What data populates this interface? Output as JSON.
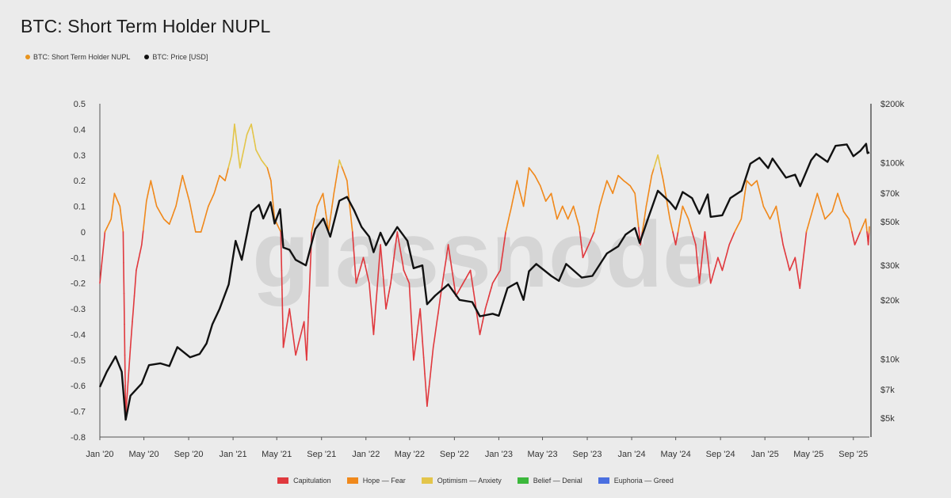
{
  "title": "BTC: Short Term Holder NUPL",
  "legend_top": [
    {
      "label": "BTC: Short Term Holder NUPL",
      "color": "#e8941e"
    },
    {
      "label": "BTC: Price [USD]",
      "color": "#111111"
    }
  ],
  "legend_bottom": [
    {
      "label": "Capitulation",
      "color": "#e0393e"
    },
    {
      "label": "Hope — Fear",
      "color": "#f0891c"
    },
    {
      "label": "Optimism — Anxiety",
      "color": "#e3c54a"
    },
    {
      "label": "Belief — Denial",
      "color": "#3cb83c"
    },
    {
      "label": "Euphoria — Greed",
      "color": "#4a6fe0"
    }
  ],
  "watermark": "glassnode",
  "chart_data": {
    "type": "line",
    "title": "BTC: Short Term Holder NUPL",
    "x_ticks": [
      "Jan '20",
      "May '20",
      "Sep '20",
      "Jan '21",
      "May '21",
      "Sep '21",
      "Jan '22",
      "May '22",
      "Sep '22",
      "Jan '23",
      "May '23",
      "Sep '23",
      "Jan '24",
      "May '24",
      "Sep '24",
      "Jan '25",
      "May '25",
      "Sep '25"
    ],
    "x_tick_dates": [
      "2020-01-01",
      "2020-05-01",
      "2020-09-01",
      "2021-01-01",
      "2021-05-01",
      "2021-09-01",
      "2022-01-01",
      "2022-05-01",
      "2022-09-01",
      "2023-01-01",
      "2023-05-01",
      "2023-09-01",
      "2024-01-01",
      "2024-05-01",
      "2024-09-01",
      "2025-01-01",
      "2025-05-01",
      "2025-09-01"
    ],
    "x_range": [
      "2020-01-01",
      "2025-10-15"
    ],
    "y_left": {
      "ticks": [
        "0.5",
        "0.4",
        "0.3",
        "0.2",
        "0.1",
        "0",
        "-0.1",
        "-0.2",
        "-0.3",
        "-0.4",
        "-0.5",
        "-0.6",
        "-0.7",
        "-0.8"
      ],
      "values": [
        0.5,
        0.4,
        0.3,
        0.2,
        0.1,
        0,
        -0.1,
        -0.2,
        -0.3,
        -0.4,
        -0.5,
        -0.6,
        -0.7,
        -0.8
      ],
      "range": [
        -0.8,
        0.5
      ]
    },
    "y_right": {
      "scale": "log",
      "ticks": [
        "$200k",
        "$100k",
        "$70k",
        "$50k",
        "$30k",
        "$20k",
        "$10k",
        "$7k",
        "$5k"
      ],
      "values": [
        200000,
        100000,
        70000,
        50000,
        30000,
        20000,
        10000,
        7000,
        5000
      ],
      "range": [
        4000,
        200000
      ]
    },
    "zones": [
      {
        "name": "Capitulation",
        "below": 0,
        "color": "#e0393e"
      },
      {
        "name": "Hope — Fear",
        "from": 0,
        "to": 0.25,
        "color": "#f0891c"
      },
      {
        "name": "Optimism — Anxiety",
        "from": 0.25,
        "to": 0.5,
        "color": "#e3c54a"
      }
    ],
    "series": [
      {
        "name": "BTC: Short Term Holder NUPL",
        "axis": "left",
        "points": [
          [
            "2020-01-01",
            -0.2
          ],
          [
            "2020-01-15",
            0.0
          ],
          [
            "2020-02-01",
            0.05
          ],
          [
            "2020-02-10",
            0.15
          ],
          [
            "2020-02-25",
            0.1
          ],
          [
            "2020-03-05",
            0.0
          ],
          [
            "2020-03-12",
            -0.72
          ],
          [
            "2020-03-25",
            -0.45
          ],
          [
            "2020-04-10",
            -0.15
          ],
          [
            "2020-04-25",
            -0.05
          ],
          [
            "2020-05-08",
            0.12
          ],
          [
            "2020-05-20",
            0.2
          ],
          [
            "2020-06-05",
            0.1
          ],
          [
            "2020-06-25",
            0.05
          ],
          [
            "2020-07-10",
            0.03
          ],
          [
            "2020-07-28",
            0.1
          ],
          [
            "2020-08-15",
            0.22
          ],
          [
            "2020-09-03",
            0.12
          ],
          [
            "2020-09-20",
            0.0
          ],
          [
            "2020-10-05",
            0.0
          ],
          [
            "2020-10-25",
            0.1
          ],
          [
            "2020-11-10",
            0.15
          ],
          [
            "2020-11-25",
            0.22
          ],
          [
            "2020-12-10",
            0.2
          ],
          [
            "2020-12-28",
            0.3
          ],
          [
            "2021-01-05",
            0.42
          ],
          [
            "2021-01-20",
            0.25
          ],
          [
            "2021-02-08",
            0.38
          ],
          [
            "2021-02-20",
            0.42
          ],
          [
            "2021-03-05",
            0.32
          ],
          [
            "2021-03-20",
            0.28
          ],
          [
            "2021-04-05",
            0.25
          ],
          [
            "2021-04-15",
            0.2
          ],
          [
            "2021-04-25",
            0.05
          ],
          [
            "2021-05-12",
            0.0
          ],
          [
            "2021-05-19",
            -0.45
          ],
          [
            "2021-06-05",
            -0.3
          ],
          [
            "2021-06-22",
            -0.48
          ],
          [
            "2021-07-15",
            -0.35
          ],
          [
            "2021-07-22",
            -0.5
          ],
          [
            "2021-08-05",
            0.0
          ],
          [
            "2021-08-20",
            0.1
          ],
          [
            "2021-09-05",
            0.15
          ],
          [
            "2021-09-20",
            0.0
          ],
          [
            "2021-10-05",
            0.15
          ],
          [
            "2021-10-20",
            0.28
          ],
          [
            "2021-11-10",
            0.2
          ],
          [
            "2021-11-25",
            0.0
          ],
          [
            "2021-12-05",
            -0.2
          ],
          [
            "2021-12-25",
            -0.1
          ],
          [
            "2022-01-10",
            -0.2
          ],
          [
            "2022-01-22",
            -0.4
          ],
          [
            "2022-02-10",
            -0.05
          ],
          [
            "2022-02-25",
            -0.3
          ],
          [
            "2022-03-10",
            -0.2
          ],
          [
            "2022-03-28",
            0.0
          ],
          [
            "2022-04-15",
            -0.15
          ],
          [
            "2022-04-30",
            -0.2
          ],
          [
            "2022-05-12",
            -0.5
          ],
          [
            "2022-05-30",
            -0.3
          ],
          [
            "2022-06-18",
            -0.68
          ],
          [
            "2022-07-05",
            -0.45
          ],
          [
            "2022-07-25",
            -0.25
          ],
          [
            "2022-08-15",
            -0.05
          ],
          [
            "2022-09-05",
            -0.25
          ],
          [
            "2022-09-25",
            -0.2
          ],
          [
            "2022-10-15",
            -0.15
          ],
          [
            "2022-11-10",
            -0.4
          ],
          [
            "2022-11-25",
            -0.3
          ],
          [
            "2022-12-15",
            -0.2
          ],
          [
            "2023-01-05",
            -0.15
          ],
          [
            "2023-01-20",
            0.0
          ],
          [
            "2023-02-05",
            0.1
          ],
          [
            "2023-02-20",
            0.2
          ],
          [
            "2023-03-10",
            0.1
          ],
          [
            "2023-03-25",
            0.25
          ],
          [
            "2023-04-10",
            0.22
          ],
          [
            "2023-04-25",
            0.18
          ],
          [
            "2023-05-10",
            0.12
          ],
          [
            "2023-05-25",
            0.15
          ],
          [
            "2023-06-10",
            0.05
          ],
          [
            "2023-06-25",
            0.1
          ],
          [
            "2023-07-10",
            0.05
          ],
          [
            "2023-07-25",
            0.1
          ],
          [
            "2023-08-10",
            0.02
          ],
          [
            "2023-08-20",
            -0.1
          ],
          [
            "2023-09-05",
            -0.05
          ],
          [
            "2023-09-20",
            0.0
          ],
          [
            "2023-10-05",
            0.1
          ],
          [
            "2023-10-25",
            0.2
          ],
          [
            "2023-11-10",
            0.15
          ],
          [
            "2023-11-25",
            0.22
          ],
          [
            "2023-12-10",
            0.2
          ],
          [
            "2023-12-28",
            0.18
          ],
          [
            "2024-01-10",
            0.15
          ],
          [
            "2024-01-25",
            -0.05
          ],
          [
            "2024-02-10",
            0.1
          ],
          [
            "2024-02-25",
            0.22
          ],
          [
            "2024-03-13",
            0.3
          ],
          [
            "2024-03-28",
            0.2
          ],
          [
            "2024-04-15",
            0.05
          ],
          [
            "2024-05-01",
            -0.05
          ],
          [
            "2024-05-20",
            0.1
          ],
          [
            "2024-06-05",
            0.05
          ],
          [
            "2024-06-25",
            -0.05
          ],
          [
            "2024-07-05",
            -0.2
          ],
          [
            "2024-07-20",
            0.0
          ],
          [
            "2024-08-05",
            -0.2
          ],
          [
            "2024-08-25",
            -0.1
          ],
          [
            "2024-09-06",
            -0.15
          ],
          [
            "2024-09-25",
            -0.05
          ],
          [
            "2024-10-10",
            0.0
          ],
          [
            "2024-10-28",
            0.05
          ],
          [
            "2024-11-12",
            0.2
          ],
          [
            "2024-11-25",
            0.18
          ],
          [
            "2024-12-10",
            0.2
          ],
          [
            "2024-12-28",
            0.1
          ],
          [
            "2025-01-15",
            0.05
          ],
          [
            "2025-02-01",
            0.1
          ],
          [
            "2025-02-20",
            -0.05
          ],
          [
            "2025-03-10",
            -0.15
          ],
          [
            "2025-03-25",
            -0.1
          ],
          [
            "2025-04-07",
            -0.22
          ],
          [
            "2025-04-25",
            0.0
          ],
          [
            "2025-05-15",
            0.1
          ],
          [
            "2025-05-25",
            0.15
          ],
          [
            "2025-06-15",
            0.05
          ],
          [
            "2025-07-05",
            0.08
          ],
          [
            "2025-07-20",
            0.15
          ],
          [
            "2025-08-05",
            0.08
          ],
          [
            "2025-08-20",
            0.05
          ],
          [
            "2025-09-05",
            -0.05
          ],
          [
            "2025-09-20",
            0.0
          ],
          [
            "2025-10-05",
            0.05
          ],
          [
            "2025-10-12",
            -0.05
          ],
          [
            "2025-10-15",
            0.02
          ]
        ]
      },
      {
        "name": "BTC: Price [USD]",
        "axis": "right",
        "color": "#111111",
        "points": [
          [
            "2020-01-01",
            7200
          ],
          [
            "2020-01-20",
            8600
          ],
          [
            "2020-02-13",
            10300
          ],
          [
            "2020-03-01",
            8600
          ],
          [
            "2020-03-12",
            4900
          ],
          [
            "2020-03-25",
            6500
          ],
          [
            "2020-04-25",
            7500
          ],
          [
            "2020-05-15",
            9300
          ],
          [
            "2020-06-15",
            9500
          ],
          [
            "2020-07-10",
            9200
          ],
          [
            "2020-08-01",
            11500
          ],
          [
            "2020-09-05",
            10200
          ],
          [
            "2020-10-01",
            10600
          ],
          [
            "2020-10-20",
            12000
          ],
          [
            "2020-11-05",
            15000
          ],
          [
            "2020-11-25",
            18000
          ],
          [
            "2020-12-20",
            24000
          ],
          [
            "2021-01-08",
            40000
          ],
          [
            "2021-01-25",
            32000
          ],
          [
            "2021-02-20",
            56000
          ],
          [
            "2021-03-13",
            61000
          ],
          [
            "2021-03-25",
            52000
          ],
          [
            "2021-04-14",
            63000
          ],
          [
            "2021-04-25",
            49000
          ],
          [
            "2021-05-10",
            58000
          ],
          [
            "2021-05-19",
            37000
          ],
          [
            "2021-06-05",
            36000
          ],
          [
            "2021-06-22",
            32000
          ],
          [
            "2021-07-20",
            30000
          ],
          [
            "2021-08-15",
            46000
          ],
          [
            "2021-09-06",
            52000
          ],
          [
            "2021-09-25",
            42000
          ],
          [
            "2021-10-20",
            64000
          ],
          [
            "2021-11-10",
            67000
          ],
          [
            "2021-11-30",
            57000
          ],
          [
            "2021-12-20",
            47000
          ],
          [
            "2022-01-10",
            42000
          ],
          [
            "2022-01-22",
            35000
          ],
          [
            "2022-02-10",
            44000
          ],
          [
            "2022-02-25",
            38000
          ],
          [
            "2022-03-28",
            47000
          ],
          [
            "2022-04-25",
            40000
          ],
          [
            "2022-05-12",
            29000
          ],
          [
            "2022-06-05",
            30000
          ],
          [
            "2022-06-18",
            19000
          ],
          [
            "2022-07-10",
            21000
          ],
          [
            "2022-08-15",
            24000
          ],
          [
            "2022-09-15",
            20000
          ],
          [
            "2022-10-20",
            19500
          ],
          [
            "2022-11-10",
            16500
          ],
          [
            "2022-12-15",
            17000
          ],
          [
            "2023-01-01",
            16600
          ],
          [
            "2023-01-25",
            23000
          ],
          [
            "2023-02-20",
            24500
          ],
          [
            "2023-03-10",
            20000
          ],
          [
            "2023-03-25",
            28000
          ],
          [
            "2023-04-14",
            30500
          ],
          [
            "2023-05-25",
            26500
          ],
          [
            "2023-06-15",
            25000
          ],
          [
            "2023-07-05",
            30500
          ],
          [
            "2023-08-17",
            26000
          ],
          [
            "2023-09-15",
            26500
          ],
          [
            "2023-10-25",
            34500
          ],
          [
            "2023-11-25",
            37500
          ],
          [
            "2023-12-15",
            43000
          ],
          [
            "2024-01-10",
            46500
          ],
          [
            "2024-01-23",
            39000
          ],
          [
            "2024-02-15",
            52000
          ],
          [
            "2024-03-13",
            72000
          ],
          [
            "2024-04-15",
            63000
          ],
          [
            "2024-05-01",
            58000
          ],
          [
            "2024-05-20",
            71000
          ],
          [
            "2024-06-15",
            66000
          ],
          [
            "2024-07-05",
            55000
          ],
          [
            "2024-07-28",
            69000
          ],
          [
            "2024-08-05",
            53000
          ],
          [
            "2024-09-06",
            54000
          ],
          [
            "2024-09-28",
            66000
          ],
          [
            "2024-10-29",
            72000
          ],
          [
            "2024-11-22",
            99000
          ],
          [
            "2024-12-17",
            106000
          ],
          [
            "2025-01-10",
            94000
          ],
          [
            "2025-01-22",
            105000
          ],
          [
            "2025-02-28",
            84000
          ],
          [
            "2025-03-25",
            87000
          ],
          [
            "2025-04-08",
            76000
          ],
          [
            "2025-05-08",
            103000
          ],
          [
            "2025-05-22",
            111000
          ],
          [
            "2025-06-22",
            101000
          ],
          [
            "2025-07-14",
            122000
          ],
          [
            "2025-08-14",
            124000
          ],
          [
            "2025-09-01",
            108000
          ],
          [
            "2025-09-20",
            115000
          ],
          [
            "2025-10-06",
            125000
          ],
          [
            "2025-10-10",
            112000
          ],
          [
            "2025-10-15",
            113000
          ]
        ]
      }
    ]
  }
}
